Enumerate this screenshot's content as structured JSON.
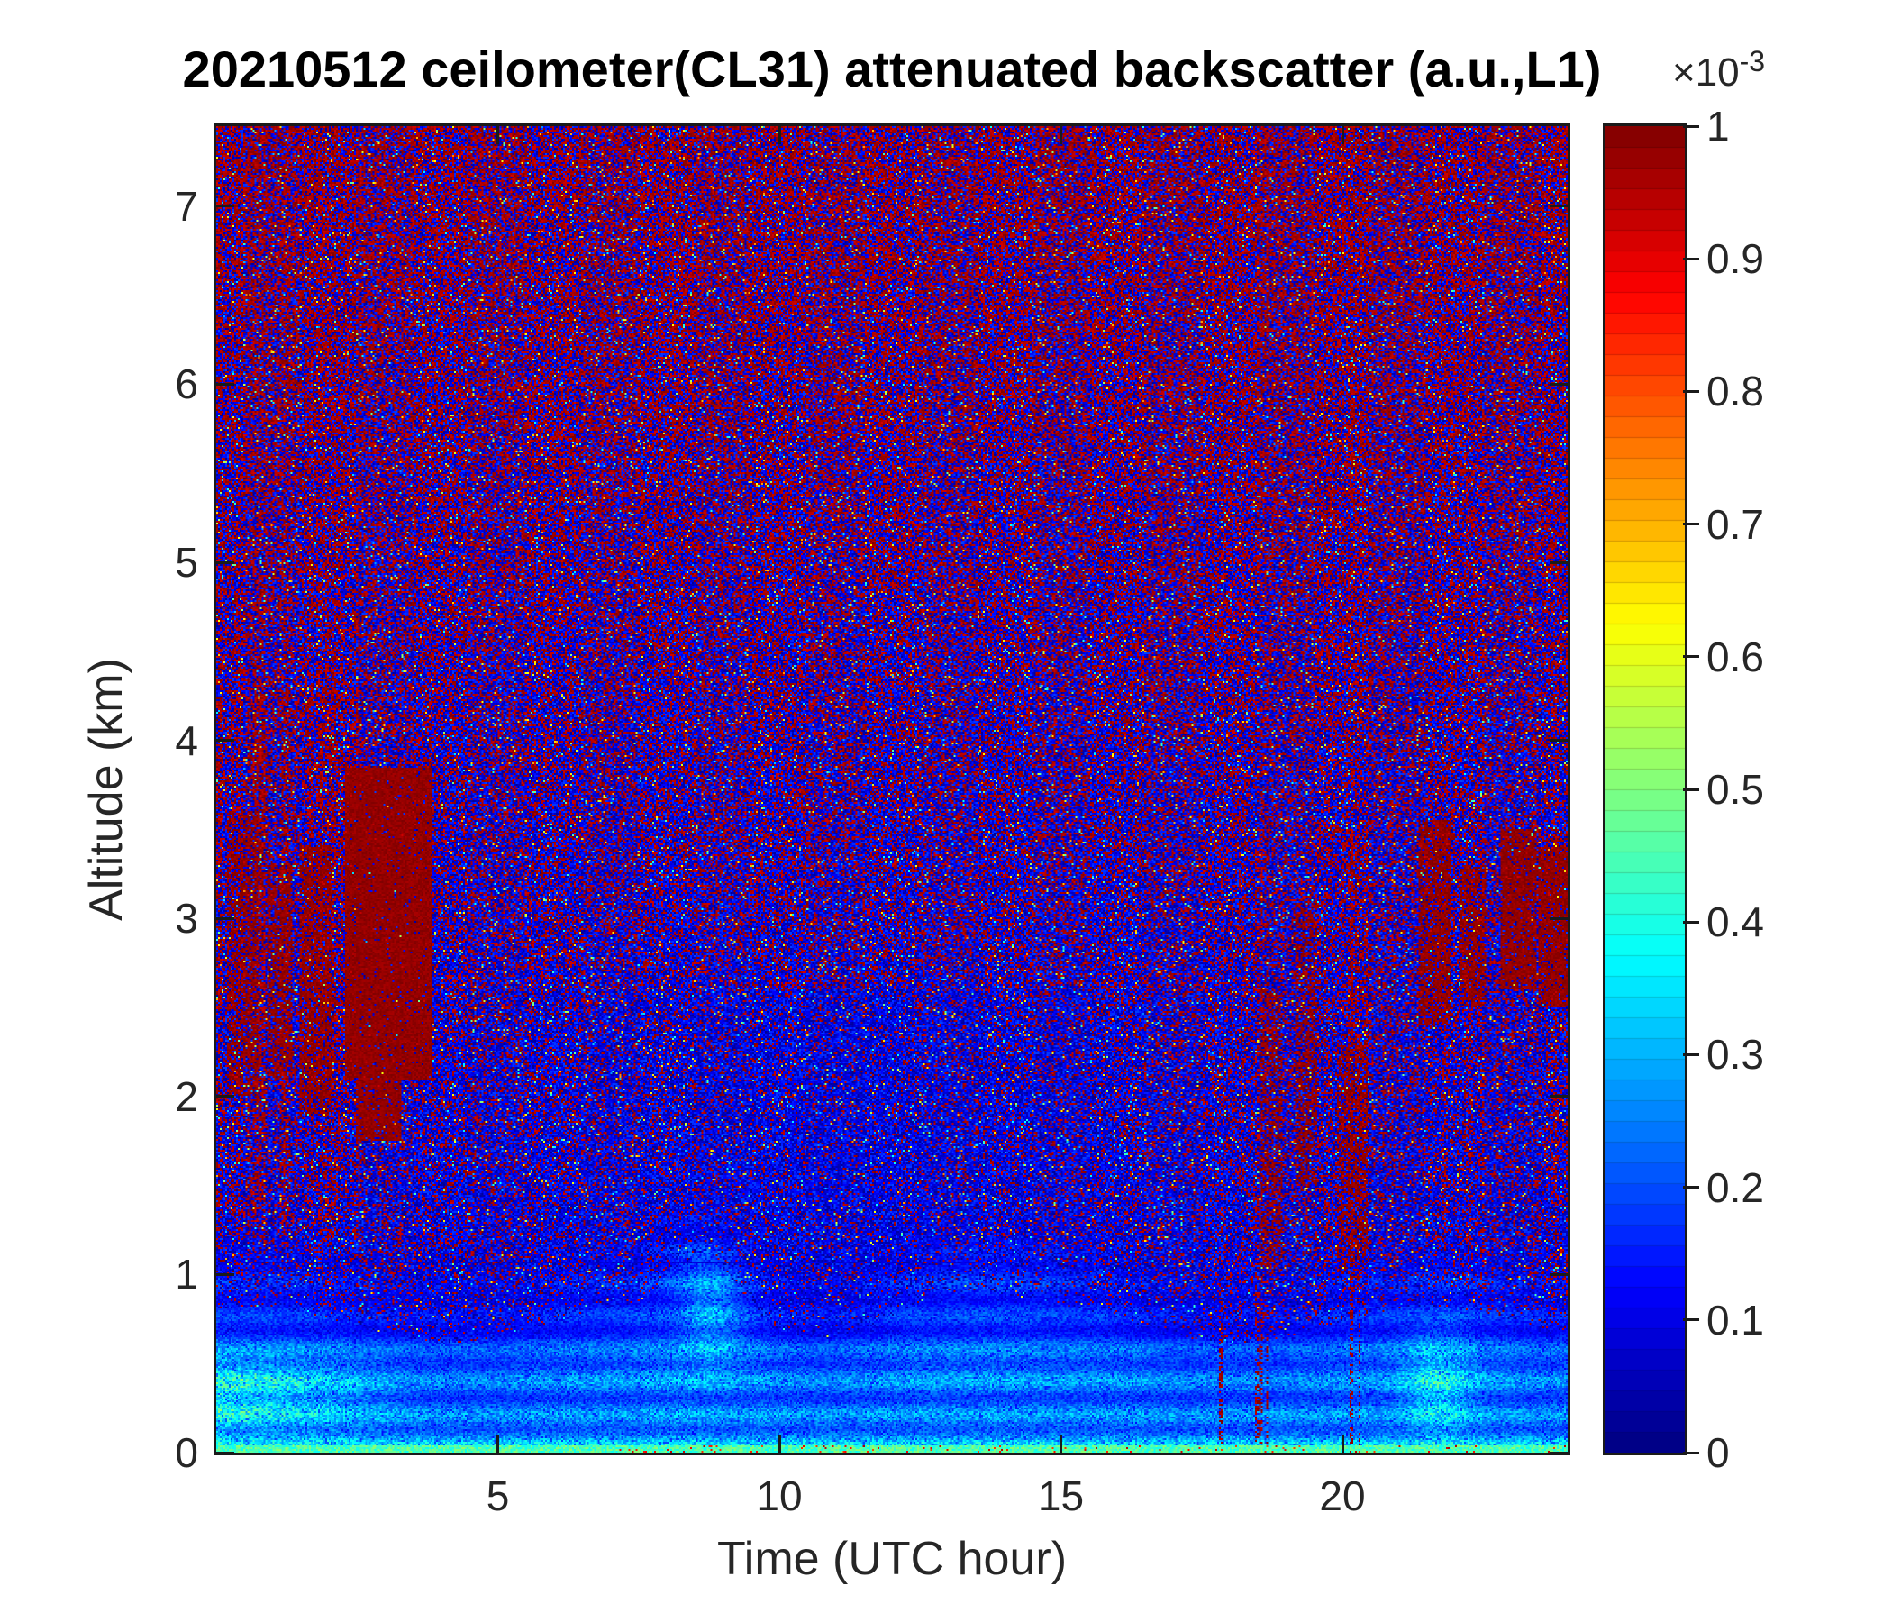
{
  "chart_data": {
    "type": "heatmap",
    "title": "20210512 ceilometer(CL31) attenuated backscatter (a.u.,L1)",
    "xlabel": "Time (UTC hour)",
    "ylabel": "Altitude (km)",
    "x_range": [
      0,
      24
    ],
    "x_ticks": [
      "5",
      "10",
      "15",
      "20"
    ],
    "x_tick_values": [
      5,
      10,
      15,
      20
    ],
    "y_range": [
      0,
      7.45
    ],
    "y_ticks": [
      "0",
      "1",
      "2",
      "3",
      "4",
      "5",
      "6",
      "7"
    ],
    "y_tick_values": [
      0,
      1,
      2,
      3,
      4,
      5,
      6,
      7
    ],
    "colormap": "jet",
    "colorbar": {
      "scale_base": "×10",
      "scale_exponent": "-3",
      "tick_labels": [
        "0",
        "0.1",
        "0.2",
        "0.3",
        "0.4",
        "0.5",
        "0.6",
        "0.7",
        "0.8",
        "0.9",
        "1"
      ],
      "tick_values": [
        0,
        0.1,
        0.2,
        0.3,
        0.4,
        0.5,
        0.6,
        0.7,
        0.8,
        0.9,
        1
      ],
      "range": [
        0,
        1
      ],
      "levels": 64
    },
    "features": {
      "surface_return_line_km": 0.04,
      "boundary_layer": {
        "typical_top_km": 0.75,
        "morning_plume": {
          "time_utc": 8.7,
          "top_km": 1.05
        },
        "midday_bump": {
          "time_utc": 12.8,
          "top_km": 0.9
        },
        "early_morning_enhanced_backscatter": {
          "time": [
            0,
            3.8
          ],
          "alt_km": [
            0.1,
            0.6
          ],
          "approx_value_e3": 0.55
        },
        "evening_enhanced_backscatter": {
          "time": [
            20.8,
            22.6
          ],
          "alt_km": [
            0.15,
            0.75
          ],
          "approx_value_e3": 0.5
        }
      },
      "noise": {
        "description": "speckled mixture of near-zero (dark blue) and saturated (dark red) values above the boundary layer; red fraction increases with altitude",
        "red_fraction_low": 0.2,
        "red_fraction_top": 0.56
      },
      "dark_horizontal_line_km": 1.065,
      "cloud_events": [
        {
          "t": [
            0.2,
            0.75
          ],
          "z": [
            2.0,
            3.6
          ],
          "p": 0.5
        },
        {
          "t": [
            0.9,
            1.35
          ],
          "z": [
            2.1,
            3.3
          ],
          "p": 0.55
        },
        {
          "t": [
            1.5,
            2.05
          ],
          "z": [
            1.9,
            3.4
          ],
          "p": 0.6
        },
        {
          "t": [
            2.3,
            3.85
          ],
          "z": [
            2.1,
            3.85
          ],
          "p": 0.93
        },
        {
          "t": [
            2.5,
            3.3
          ],
          "z": [
            1.75,
            2.2
          ],
          "p": 0.85
        },
        {
          "t": [
            18.55,
            18.95
          ],
          "z": [
            1.0,
            2.6
          ],
          "p": 0.4
        },
        {
          "t": [
            19.15,
            19.55
          ],
          "z": [
            1.5,
            3.1
          ],
          "p": 0.45
        },
        {
          "t": [
            19.9,
            20.45
          ],
          "z": [
            0.9,
            2.3
          ],
          "p": 0.45
        },
        {
          "t": [
            21.35,
            21.95
          ],
          "z": [
            2.4,
            3.55
          ],
          "p": 0.7
        },
        {
          "t": [
            22.1,
            22.55
          ],
          "z": [
            2.5,
            3.3
          ],
          "p": 0.6
        },
        {
          "t": [
            22.8,
            23.45
          ],
          "z": [
            2.6,
            3.5
          ],
          "p": 0.8
        },
        {
          "t": [
            23.5,
            24.0
          ],
          "z": [
            2.5,
            3.4
          ],
          "p": 0.8
        }
      ]
    }
  }
}
